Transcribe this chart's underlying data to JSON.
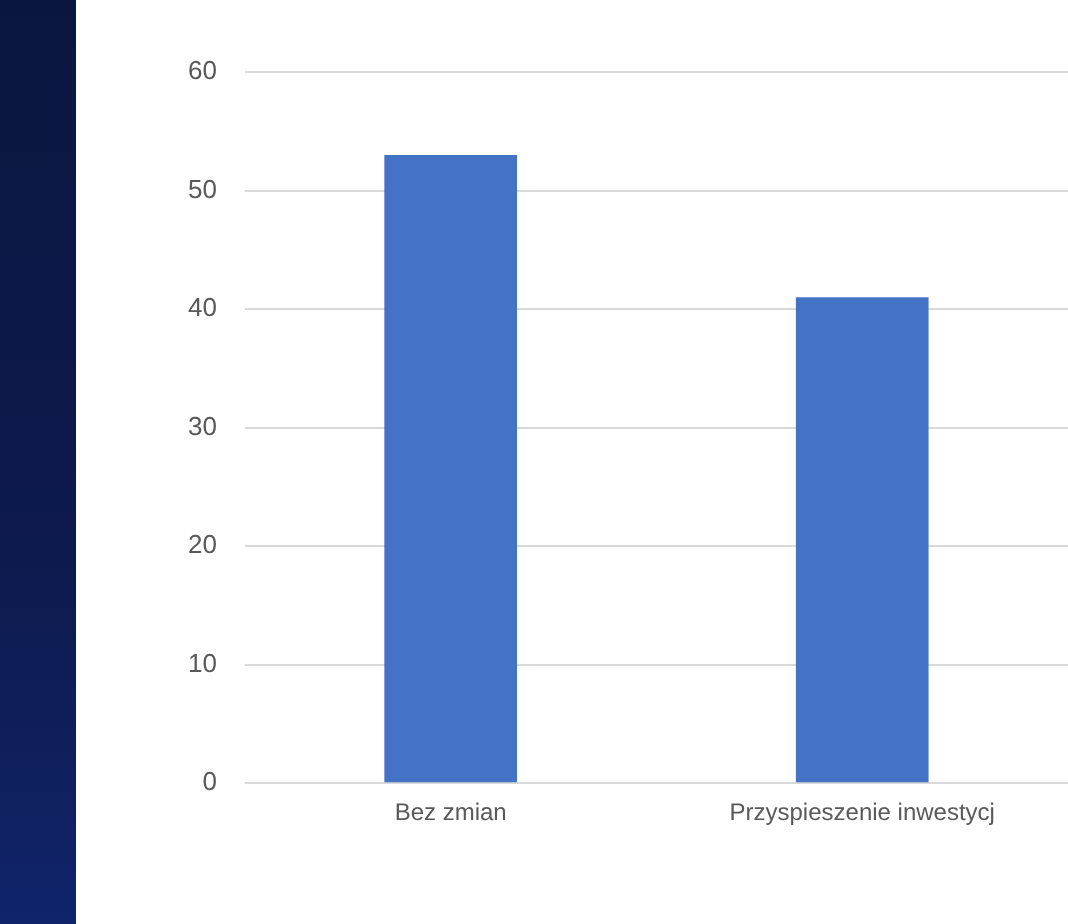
{
  "chart_data": {
    "type": "bar",
    "categories": [
      "Bez zmian",
      "Przyspieszenie inwestycj"
    ],
    "values": [
      53,
      41
    ],
    "color": "#4472c4",
    "ylim": [
      0,
      60
    ],
    "yticks": [
      0,
      10,
      20,
      30,
      40,
      50,
      60
    ],
    "grid": "y",
    "legend": false
  }
}
